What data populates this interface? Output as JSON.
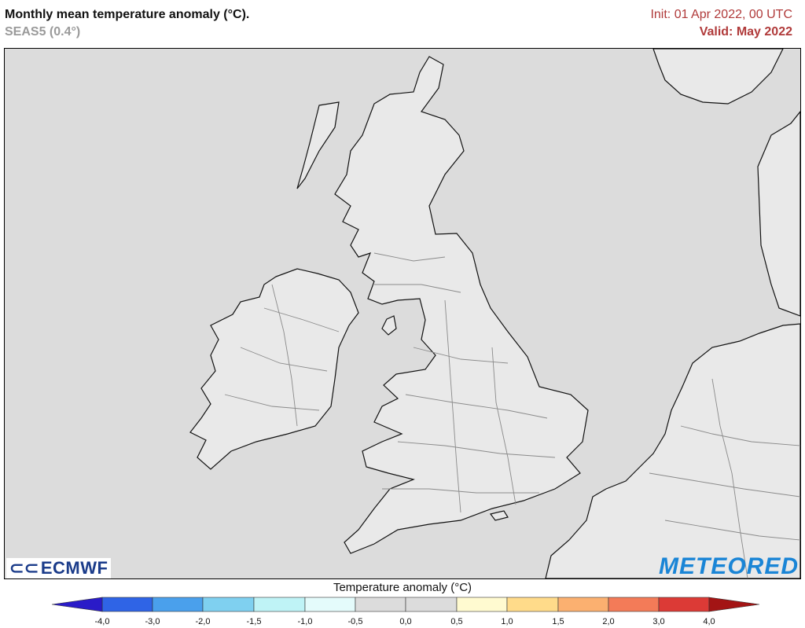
{
  "header": {
    "title": "Monthly mean temperature anomaly (°C).",
    "subtitle": "SEAS5 (0.4°)",
    "init": "Init: 01 Apr 2022, 00 UTC",
    "valid": "Valid: May 2022"
  },
  "logos": {
    "left": "ECMWF",
    "right": "METEORED"
  },
  "legend": {
    "title": "Temperature anomaly (°C)",
    "ticks": [
      "-4,0",
      "-3,0",
      "-2,0",
      "-1,5",
      "-1,0",
      "-0,5",
      "0,0",
      "0,5",
      "1,0",
      "1,5",
      "2,0",
      "3,0",
      "4,0"
    ],
    "colors": [
      "#1f2bd8",
      "#2f64e6",
      "#4aa0ec",
      "#7fd0f0",
      "#bff3f6",
      "#e4fbfb",
      "#dcdcdc",
      "#dcdcdc",
      "#fffad0",
      "#ffdb8a",
      "#fbb070",
      "#f37b58",
      "#dc3a36",
      "#b01c1c"
    ],
    "left_arrow_color": "#2a1bc8",
    "right_arrow_color": "#a31414"
  },
  "map": {
    "background": "#dcdcdc",
    "land": "#e9e9e9",
    "coast": "#111111",
    "border": "#8a8a8a"
  }
}
